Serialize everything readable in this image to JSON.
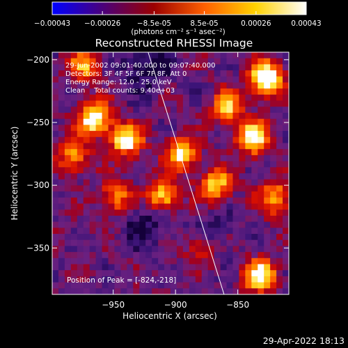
{
  "colorbar": {
    "tick_labels": [
      "-0.00043",
      "-0.00026",
      "-8.5e-05",
      "8.5e-05",
      "0.00026",
      "0.00043"
    ],
    "tick_values": [
      -0.00043,
      -0.00026,
      -8.5e-05,
      8.5e-05,
      0.00026,
      0.00043
    ],
    "range": [
      -0.00043,
      0.00043
    ],
    "units_label": "(photons cm⁻² s⁻¹ asec⁻²)",
    "colors": [
      "#0000ff",
      "#4b007a",
      "#9b0000",
      "#ff6000",
      "#ffd200",
      "#ffffff"
    ]
  },
  "chart_data": {
    "type": "heatmap",
    "title": "Reconstructed RHESSI Image",
    "xlabel": "Heliocentric X (arcsec)",
    "ylabel": "Heliocentric Y (arcsec)",
    "xlim": [
      -999,
      -809
    ],
    "ylim": [
      -387,
      -194
    ],
    "xticks": [
      -950,
      -900,
      -850
    ],
    "yticks": [
      -200,
      -250,
      -300,
      -350
    ],
    "xtick_labels": [
      "−950",
      "−900",
      "−850"
    ],
    "ytick_labels": [
      "−200",
      "−250",
      "−300",
      "−350"
    ],
    "info_lines": [
      "29-Jun-2002 09:01:40.000 to 09:07:40.000",
      "Detectors: 3F 4F 5F 6F 7F 8F, Att 0",
      "Energy Range: 12.0 - 25.0 keV",
      "Clean    Total counts: 9.40e+03"
    ],
    "peak_label": "Position of Peak = [-824,-218]",
    "peak_position": [
      -824,
      -218
    ],
    "limb": {
      "x": [
        -922,
        -861
      ],
      "y": [
        -194,
        -387
      ]
    },
    "bright_sources": [
      {
        "x": -827,
        "y": -215,
        "amp": 1.0
      },
      {
        "x": -965,
        "y": -247,
        "amp": 0.9
      },
      {
        "x": -940,
        "y": -264,
        "amp": 0.8
      },
      {
        "x": -895,
        "y": -275,
        "amp": 0.75
      },
      {
        "x": -838,
        "y": -262,
        "amp": 0.85
      },
      {
        "x": -910,
        "y": -308,
        "amp": 0.75
      },
      {
        "x": -868,
        "y": -300,
        "amp": 0.7
      },
      {
        "x": -832,
        "y": -372,
        "amp": 0.8
      },
      {
        "x": -858,
        "y": -238,
        "amp": 0.6
      },
      {
        "x": -982,
        "y": -278,
        "amp": 0.55
      },
      {
        "x": -973,
        "y": -205,
        "amp": 0.55
      },
      {
        "x": -948,
        "y": -310,
        "amp": 0.55
      },
      {
        "x": -820,
        "y": -310,
        "amp": 0.6
      },
      {
        "x": -880,
        "y": -350,
        "amp": 0.35
      }
    ],
    "dim_regions": [
      {
        "x": -924,
        "y": -205,
        "amp": 0.9
      },
      {
        "x": -925,
        "y": -330,
        "amp": 0.7
      },
      {
        "x": -870,
        "y": -340,
        "amp": 0.5
      }
    ]
  },
  "footer_timestamp": "29-Apr-2022 18:13"
}
